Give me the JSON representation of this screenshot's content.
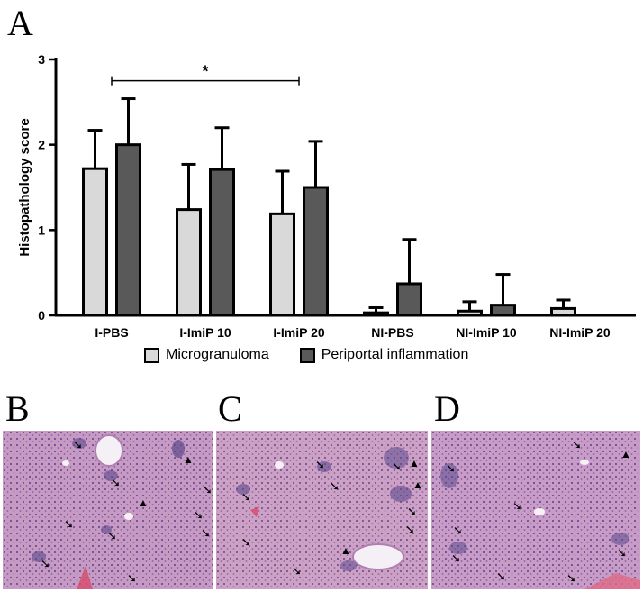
{
  "panels": {
    "a": "A",
    "b": "B",
    "c": "C",
    "d": "D"
  },
  "chart_data": {
    "type": "bar",
    "title": "",
    "xlabel": "",
    "ylabel": "Histopathology score",
    "ylim": [
      0,
      3
    ],
    "yticks": [
      "0",
      "1",
      "2",
      "3"
    ],
    "categories": [
      "I-PBS",
      "I-ImiP 10",
      "I-ImiP 20",
      "NI-PBS",
      "NI-ImiP 10",
      "NI-ImiP 20"
    ],
    "series": [
      {
        "name": "Microgranuloma",
        "color": "#d9d9d9",
        "values": [
          1.72,
          1.24,
          1.19,
          0.03,
          0.05,
          0.08
        ],
        "errors": [
          0.45,
          0.53,
          0.5,
          0.06,
          0.11,
          0.1
        ]
      },
      {
        "name": "Periportal inflammation",
        "color": "#595959",
        "values": [
          2.0,
          1.71,
          1.5,
          0.37,
          0.12,
          0
        ],
        "errors": [
          0.54,
          0.49,
          0.54,
          0.52,
          0.36,
          0
        ]
      }
    ],
    "significance": {
      "from": "I-PBS",
      "to": "I-ImiP 20",
      "label": "*"
    },
    "legend_position": "bottom"
  },
  "images": [
    {
      "label": "B",
      "subject": "liver-histology",
      "arrows": 11,
      "arrowheads": 2
    },
    {
      "label": "C",
      "subject": "liver-histology",
      "arrows": 10,
      "arrowheads": 3
    },
    {
      "label": "D",
      "subject": "liver-histology",
      "arrows": 10,
      "arrowheads": 1
    }
  ]
}
